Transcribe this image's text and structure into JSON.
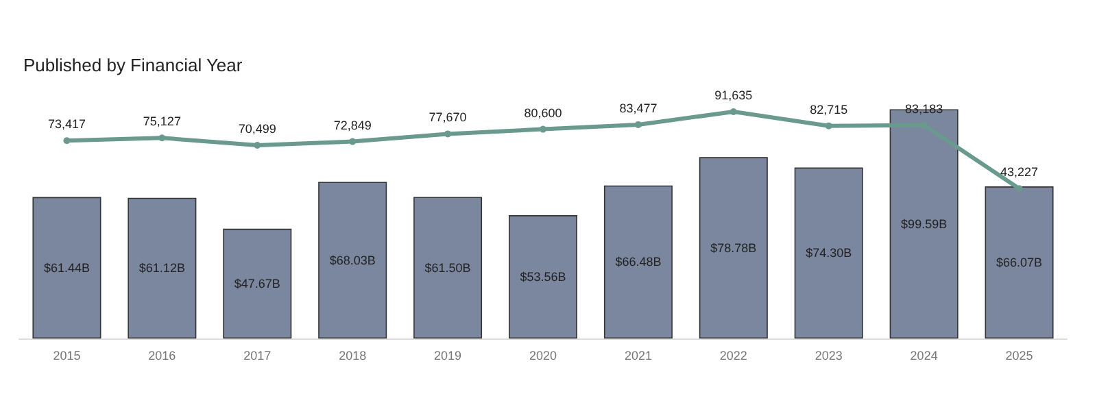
{
  "chart_data": {
    "type": "bar",
    "title": "Published by Financial Year",
    "categories": [
      "2015",
      "2016",
      "2017",
      "2018",
      "2019",
      "2020",
      "2021",
      "2022",
      "2023",
      "2024",
      "2025"
    ],
    "series": [
      {
        "color": "#7a879f",
        "values": [
          61.44,
          61.12,
          47.67,
          68.03,
          61.5,
          53.56,
          66.48,
          78.78,
          74.3,
          99.59,
          66.07
        ],
        "value_labels": [
          "$61.44B",
          "$61.12B",
          "$47.67B",
          "$68.03B",
          "$61.50B",
          "$53.56B",
          "$66.48B",
          "$78.78B",
          "$74.30B",
          "$99.59B",
          "$66.07B"
        ]
      },
      {
        "type": "line",
        "axis": "y2",
        "color": "#6a9a8e",
        "marker": "circle",
        "values": [
          73417,
          75127,
          70499,
          72849,
          77670,
          80600,
          83477,
          91635,
          82715,
          83183,
          43227
        ],
        "value_labels": [
          "73,417",
          "75,127",
          "70,499",
          "72,849",
          "77,670",
          "80,600",
          "83,477",
          "91,635",
          "82,715",
          "83,183",
          "43,227"
        ]
      }
    ]
  }
}
